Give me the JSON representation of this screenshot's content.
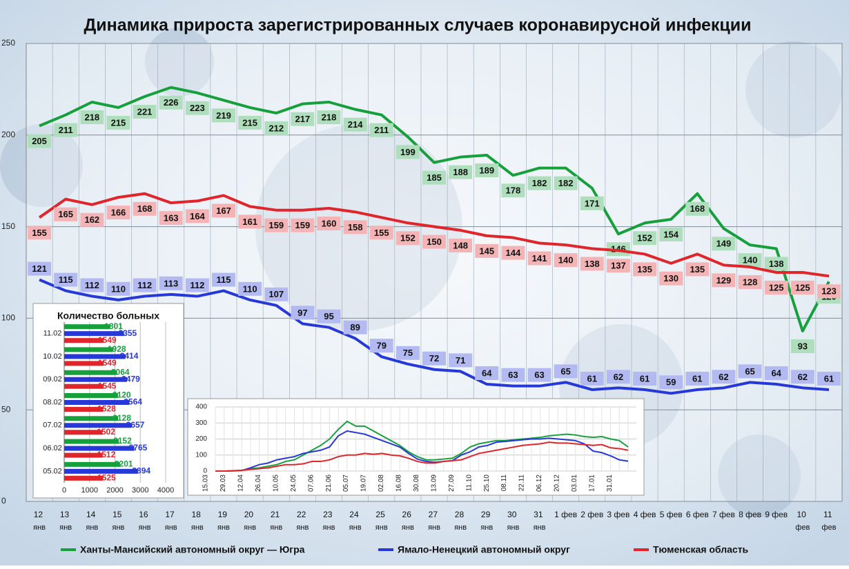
{
  "chart_data": [
    {
      "type": "line",
      "title": "Динамика прироста зарегистрированных случаев коронавирусной инфекции",
      "categories": [
        "12 янв",
        "13 янв",
        "14 янв",
        "15 янв",
        "16 янв",
        "17 янв",
        "18 янв",
        "19 янв",
        "20 янв",
        "21 янв",
        "22 янв",
        "23 янв",
        "24 янв",
        "25 янв",
        "26 янв",
        "27 янв",
        "28 янв",
        "29 янв",
        "30 янв",
        "31 янв",
        "1 фев",
        "2 фев",
        "3 фев",
        "4 фев",
        "5 фев",
        "6 фев",
        "7 фев",
        "8 фев",
        "9 фев",
        "10 фев",
        "11 фев"
      ],
      "series": [
        {
          "name": "Ханты-Мансийский автономный округ — Югра",
          "color": "#16a03c",
          "values": [
            205,
            211,
            218,
            215,
            221,
            226,
            223,
            219,
            215,
            212,
            217,
            218,
            214,
            211,
            199,
            185,
            188,
            189,
            178,
            182,
            182,
            171,
            146,
            152,
            154,
            168,
            149,
            140,
            138,
            93,
            120
          ]
        },
        {
          "name": "Ямало-Ненецкий автономный округ",
          "color": "#2638d8",
          "values": [
            121,
            115,
            112,
            110,
            112,
            113,
            112,
            115,
            110,
            107,
            97,
            95,
            89,
            79,
            75,
            72,
            71,
            64,
            63,
            63,
            65,
            61,
            62,
            61,
            59,
            61,
            62,
            65,
            64,
            62,
            61
          ]
        },
        {
          "name": "Тюменская область",
          "color": "#e0252b",
          "values": [
            155,
            165,
            162,
            166,
            168,
            163,
            164,
            167,
            161,
            159,
            159,
            160,
            158,
            155,
            152,
            150,
            148,
            145,
            144,
            141,
            140,
            138,
            137,
            135,
            130,
            135,
            129,
            128,
            125,
            125,
            123
          ]
        }
      ],
      "ylim": [
        0,
        250
      ],
      "yticks": [
        0,
        50,
        100,
        150,
        200,
        250
      ],
      "grid": true,
      "legend": "bottom"
    },
    {
      "type": "bar",
      "orientation": "horizontal",
      "title": "Количество больных",
      "categories": [
        "11.02",
        "10.02",
        "09.02",
        "08.02",
        "07.02",
        "06.02",
        "05.02"
      ],
      "series": [
        {
          "color": "#16a03c",
          "values": [
            1801,
            1928,
            2064,
            2120,
            2128,
            2152,
            2201
          ]
        },
        {
          "color": "#2638d8",
          "values": [
            2355,
            2414,
            2479,
            2564,
            2657,
            2765,
            2894
          ]
        },
        {
          "color": "#e0252b",
          "values": [
            1549,
            1549,
            1545,
            1528,
            1502,
            1512,
            1525
          ]
        }
      ],
      "xlim": [
        0,
        4000
      ],
      "xticks": [
        0,
        1000,
        2000,
        3000,
        4000
      ],
      "grid": true
    },
    {
      "type": "line",
      "categories": [
        "15.03",
        null,
        "29.03",
        null,
        "12.04",
        null,
        "26.04",
        null,
        "10.05",
        null,
        "24.05",
        null,
        "07.06",
        null,
        "21.06",
        null,
        "05.07",
        null,
        "19.07",
        null,
        "02.08",
        null,
        "16.08",
        null,
        "30.08",
        null,
        "13.09",
        null,
        "27.09",
        null,
        "11.10",
        null,
        "25.10",
        null,
        "08.11",
        null,
        "22.11",
        null,
        "06.12",
        null,
        "20.12",
        null,
        "03.01",
        null,
        "17.01",
        null,
        "31.01",
        null
      ],
      "series": [
        {
          "color": "#16a03c",
          "values": [
            0,
            0,
            1,
            5,
            15,
            20,
            30,
            40,
            60,
            70,
            100,
            130,
            160,
            200,
            260,
            310,
            280,
            280,
            250,
            220,
            190,
            160,
            120,
            90,
            70,
            70,
            75,
            80,
            110,
            150,
            170,
            180,
            190,
            190,
            195,
            200,
            205,
            210,
            220,
            225,
            230,
            225,
            215,
            210,
            215,
            200,
            190,
            150
          ]
        },
        {
          "color": "#2638d8",
          "values": [
            0,
            0,
            1,
            3,
            20,
            40,
            50,
            70,
            80,
            90,
            110,
            120,
            130,
            150,
            220,
            250,
            240,
            230,
            210,
            190,
            170,
            150,
            110,
            75,
            60,
            55,
            60,
            65,
            100,
            120,
            150,
            160,
            180,
            185,
            190,
            195,
            200,
            200,
            205,
            200,
            195,
            190,
            170,
            125,
            115,
            95,
            70,
            62
          ]
        },
        {
          "color": "#e0252b",
          "values": [
            0,
            0,
            2,
            5,
            10,
            15,
            20,
            30,
            40,
            40,
            45,
            60,
            60,
            70,
            90,
            100,
            100,
            110,
            105,
            110,
            100,
            95,
            80,
            60,
            50,
            50,
            60,
            65,
            70,
            90,
            110,
            120,
            130,
            140,
            150,
            160,
            165,
            170,
            180,
            175,
            175,
            170,
            165,
            160,
            165,
            145,
            140,
            130
          ]
        }
      ],
      "ylim": [
        0,
        400
      ],
      "yticks": [
        0,
        100,
        200,
        300,
        400
      ],
      "grid": true
    }
  ]
}
